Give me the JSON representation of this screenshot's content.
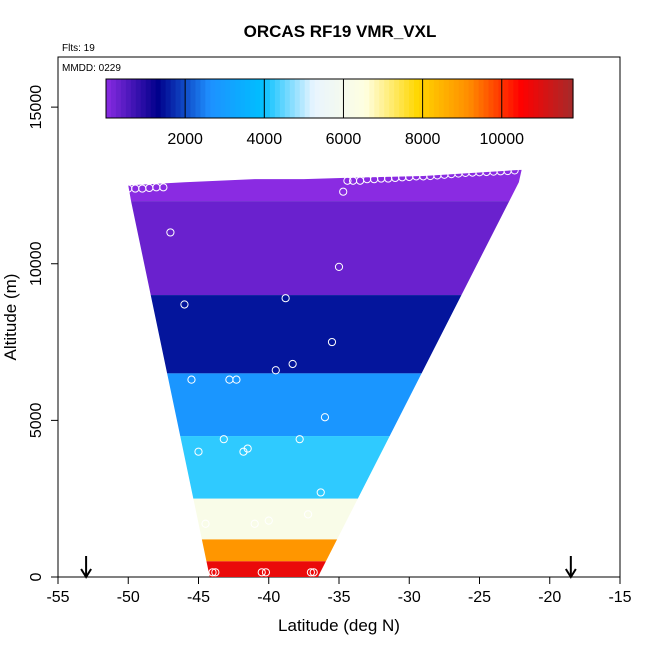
{
  "chart_data": {
    "type": "heatmap",
    "title": "ORCAS RF19 VMR_VXL",
    "flight_note": "Flts: 19",
    "date_note": "MMDD: 0229",
    "xlabel": "Latitude (deg N)",
    "ylabel": "Altitude (m)",
    "xlim": [
      -55,
      -15
    ],
    "ylim": [
      0,
      16600
    ],
    "x_ticks": [
      -55,
      -50,
      -45,
      -40,
      -35,
      -30,
      -25,
      -20,
      -15
    ],
    "y_ticks": [
      0,
      5000,
      10000,
      15000
    ],
    "colorbar": {
      "range": [
        0,
        11800
      ],
      "ticks": [
        2000,
        4000,
        6000,
        8000,
        10000
      ],
      "colors": [
        "#8a2be2",
        "#00008b",
        "#1e90ff",
        "#00bfff",
        "#e8f4ff",
        "#ffffe0",
        "#ffd700",
        "#ff8c00",
        "#ff0000",
        "#a52a2a"
      ]
    },
    "field_outline": [
      [
        -50,
        12500
      ],
      [
        -46,
        12600
      ],
      [
        -41,
        12700
      ],
      [
        -37.5,
        12700
      ],
      [
        -34,
        12750
      ],
      [
        -29,
        12800
      ],
      [
        -22,
        13000
      ],
      [
        -22.2,
        12600
      ],
      [
        -36.5,
        0
      ],
      [
        -44.2,
        0
      ],
      [
        -49.8,
        12000
      ]
    ],
    "field_bands": [
      {
        "y0": 12000,
        "y1": 13000,
        "value": 0
      },
      {
        "y0": 9000,
        "y1": 12000,
        "value": 300
      },
      {
        "y0": 6500,
        "y1": 9000,
        "value": 1500
      },
      {
        "y0": 4500,
        "y1": 6500,
        "value": 2800
      },
      {
        "y0": 2500,
        "y1": 4500,
        "value": 4200
      },
      {
        "y0": 1200,
        "y1": 2500,
        "value": 6200
      },
      {
        "y0": 500,
        "y1": 1200,
        "value": 9000
      },
      {
        "y0": 0,
        "y1": 500,
        "value": 10800
      }
    ],
    "measurements": [
      [
        -50,
        12400
      ],
      [
        -49.5,
        12400
      ],
      [
        -49,
        12400
      ],
      [
        -48.5,
        12420
      ],
      [
        -48,
        12440
      ],
      [
        -47.5,
        12440
      ],
      [
        -47,
        11000
      ],
      [
        -46,
        8700
      ],
      [
        -45.5,
        6300
      ],
      [
        -45,
        4000
      ],
      [
        -44.5,
        1700
      ],
      [
        -44,
        150
      ],
      [
        -43.8,
        150
      ],
      [
        -43.2,
        4400
      ],
      [
        -42.8,
        6300
      ],
      [
        -42.3,
        6300
      ],
      [
        -41.8,
        4000
      ],
      [
        -41.5,
        4100
      ],
      [
        -41,
        1700
      ],
      [
        -40.5,
        150
      ],
      [
        -40.2,
        150
      ],
      [
        -40,
        1800
      ],
      [
        -39.5,
        6600
      ],
      [
        -38.8,
        8900
      ],
      [
        -38.3,
        6800
      ],
      [
        -37.8,
        4400
      ],
      [
        -37.2,
        2000
      ],
      [
        -37,
        150
      ],
      [
        -36.8,
        150
      ],
      [
        -36.3,
        2700
      ],
      [
        -36,
        5100
      ],
      [
        -35.5,
        7500
      ],
      [
        -35,
        9900
      ],
      [
        -34.7,
        12300
      ],
      [
        -34.4,
        12650
      ],
      [
        -34,
        12650
      ],
      [
        -33.5,
        12650
      ],
      [
        -33,
        12700
      ],
      [
        -32.5,
        12700
      ],
      [
        -32,
        12720
      ],
      [
        -31.5,
        12720
      ],
      [
        -31,
        12740
      ],
      [
        -30.5,
        12760
      ],
      [
        -30,
        12770
      ],
      [
        -29.5,
        12790
      ],
      [
        -29,
        12790
      ],
      [
        -28.5,
        12800
      ],
      [
        -28,
        12820
      ],
      [
        -27.5,
        12840
      ],
      [
        -27,
        12860
      ],
      [
        -26.5,
        12880
      ],
      [
        -26,
        12900
      ],
      [
        -25.5,
        12910
      ],
      [
        -25,
        12920
      ],
      [
        -24.5,
        12930
      ],
      [
        -24,
        12940
      ],
      [
        -23.5,
        12950
      ],
      [
        -23,
        12960
      ],
      [
        -22.5,
        12980
      ]
    ],
    "arrows_latitude": [
      -53,
      -18.5
    ],
    "legend": "top"
  }
}
